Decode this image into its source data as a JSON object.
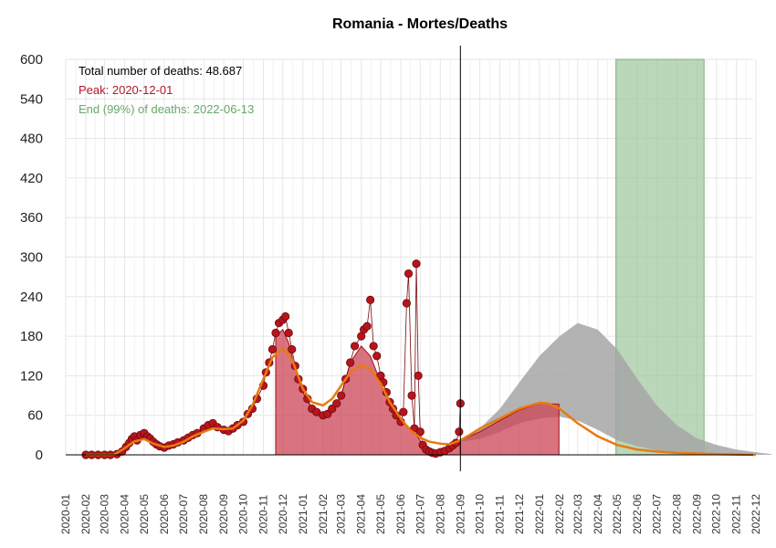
{
  "chart_data": {
    "type": "area",
    "title": "Romania - Mortes/Deaths",
    "xlabel": "",
    "ylabel": "",
    "ylim": [
      0,
      600
    ],
    "yticks": [
      0,
      60,
      120,
      180,
      240,
      300,
      360,
      420,
      480,
      540,
      600
    ],
    "xlim": [
      "2020-01-01",
      "2023-01-01"
    ],
    "xticks": [
      "2020-01",
      "2020-02",
      "2020-03",
      "2020-04",
      "2020-05",
      "2020-06",
      "2020-07",
      "2020-08",
      "2020-09",
      "2020-10",
      "2020-11",
      "2020-12",
      "2021-01",
      "2021-02",
      "2021-03",
      "2021-04",
      "2021-05",
      "2021-06",
      "2021-07",
      "2021-08",
      "2021-09",
      "2021-10",
      "2021-11",
      "2021-12",
      "2022-01",
      "2022-02",
      "2022-03",
      "2022-04",
      "2022-05",
      "2022-06",
      "2022-07",
      "2022-08",
      "2022-09",
      "2022-10",
      "2022-11",
      "2022-12"
    ],
    "grid": true,
    "annotations": [
      {
        "text": "Total number of deaths: 48.687",
        "color": "#000000"
      },
      {
        "text": "Peak: 2020-12-01",
        "color": "#b2182b"
      },
      {
        "text": "End (99%) of deaths: 2022-06-13",
        "color": "#6aa86a"
      }
    ],
    "vline_date": "2021-09-01",
    "highlight_band": {
      "start": "2022-04-29",
      "end": "2022-09-12",
      "color": "#9cc69b"
    },
    "colors": {
      "observed": "#cc4455",
      "points": "#b8141c",
      "fit": "#e87a0f",
      "projection": "#a6a6a6",
      "band": "#8fbf8e"
    },
    "observed_daily": [
      [
        "2020-02-01",
        0
      ],
      [
        "2020-03-15",
        0
      ],
      [
        "2020-04-01",
        15
      ],
      [
        "2020-04-15",
        25
      ],
      [
        "2020-05-01",
        30
      ],
      [
        "2020-05-15",
        22
      ],
      [
        "2020-06-01",
        15
      ],
      [
        "2020-06-15",
        12
      ],
      [
        "2020-07-01",
        20
      ],
      [
        "2020-07-15",
        30
      ],
      [
        "2020-08-01",
        38
      ],
      [
        "2020-08-15",
        45
      ],
      [
        "2020-09-01",
        42
      ],
      [
        "2020-09-15",
        35
      ],
      [
        "2020-10-01",
        48
      ],
      [
        "2020-10-15",
        75
      ],
      [
        "2020-11-01",
        110
      ],
      [
        "2020-11-10",
        145
      ],
      [
        "2020-11-20",
        180
      ],
      [
        "2020-12-01",
        190
      ],
      [
        "2020-12-10",
        170
      ],
      [
        "2020-12-20",
        130
      ],
      [
        "2021-01-01",
        95
      ],
      [
        "2021-01-15",
        70
      ],
      [
        "2021-02-01",
        60
      ],
      [
        "2021-02-15",
        70
      ],
      [
        "2021-03-01",
        90
      ],
      [
        "2021-03-15",
        140
      ],
      [
        "2021-04-01",
        165
      ],
      [
        "2021-04-15",
        150
      ],
      [
        "2021-05-01",
        110
      ],
      [
        "2021-05-15",
        80
      ],
      [
        "2021-06-01",
        55
      ],
      [
        "2021-06-15",
        40
      ],
      [
        "2021-06-25",
        30
      ],
      [
        "2021-07-10",
        8
      ],
      [
        "2021-07-25",
        3
      ],
      [
        "2021-08-10",
        8
      ],
      [
        "2021-08-25",
        15
      ],
      [
        "2021-09-01",
        22
      ]
    ],
    "fitted_curve": [
      [
        "2020-02-01",
        0
      ],
      [
        "2020-03-15",
        0
      ],
      [
        "2020-04-01",
        10
      ],
      [
        "2020-04-15",
        20
      ],
      [
        "2020-05-01",
        24
      ],
      [
        "2020-05-15",
        17
      ],
      [
        "2020-06-01",
        12
      ],
      [
        "2020-06-15",
        14
      ],
      [
        "2020-07-01",
        20
      ],
      [
        "2020-07-15",
        28
      ],
      [
        "2020-08-01",
        35
      ],
      [
        "2020-08-15",
        40
      ],
      [
        "2020-09-01",
        39
      ],
      [
        "2020-09-15",
        40
      ],
      [
        "2020-10-01",
        52
      ],
      [
        "2020-10-15",
        75
      ],
      [
        "2020-11-01",
        115
      ],
      [
        "2020-11-15",
        148
      ],
      [
        "2020-12-01",
        162
      ],
      [
        "2020-12-15",
        145
      ],
      [
        "2021-01-01",
        100
      ],
      [
        "2021-01-15",
        80
      ],
      [
        "2021-02-01",
        75
      ],
      [
        "2021-02-15",
        85
      ],
      [
        "2021-03-01",
        105
      ],
      [
        "2021-03-15",
        125
      ],
      [
        "2021-04-01",
        136
      ],
      [
        "2021-04-15",
        130
      ],
      [
        "2021-05-01",
        108
      ],
      [
        "2021-05-15",
        80
      ],
      [
        "2021-06-01",
        55
      ],
      [
        "2021-06-15",
        38
      ],
      [
        "2021-07-01",
        26
      ],
      [
        "2021-07-15",
        20
      ],
      [
        "2021-08-01",
        17
      ],
      [
        "2021-08-15",
        16
      ],
      [
        "2021-09-01",
        22
      ],
      [
        "2021-09-15",
        30
      ],
      [
        "2021-10-01",
        40
      ],
      [
        "2021-11-01",
        55
      ],
      [
        "2021-12-01",
        70
      ],
      [
        "2022-01-01",
        79
      ],
      [
        "2022-01-15",
        78
      ],
      [
        "2022-02-01",
        70
      ],
      [
        "2022-03-01",
        48
      ],
      [
        "2022-04-01",
        28
      ],
      [
        "2022-05-01",
        15
      ],
      [
        "2022-06-01",
        8
      ],
      [
        "2022-07-01",
        5
      ],
      [
        "2022-08-01",
        3
      ],
      [
        "2022-09-01",
        2
      ],
      [
        "2022-10-01",
        1
      ],
      [
        "2022-11-01",
        0.5
      ],
      [
        "2022-12-01",
        0
      ]
    ],
    "projection_band": [
      [
        "2021-09-01",
        20,
        22
      ],
      [
        "2021-10-01",
        24,
        40
      ],
      [
        "2021-11-01",
        35,
        70
      ],
      [
        "2021-12-01",
        48,
        110
      ],
      [
        "2022-01-01",
        55,
        150
      ],
      [
        "2022-02-01",
        58,
        180
      ],
      [
        "2022-03-01",
        52,
        200
      ],
      [
        "2022-04-01",
        38,
        190
      ],
      [
        "2022-05-01",
        22,
        160
      ],
      [
        "2022-06-01",
        13,
        115
      ],
      [
        "2022-07-01",
        7,
        75
      ],
      [
        "2022-08-01",
        4,
        45
      ],
      [
        "2022-09-01",
        2,
        25
      ],
      [
        "2022-10-01",
        1,
        15
      ],
      [
        "2022-11-01",
        0.5,
        8
      ],
      [
        "2022-12-01",
        0,
        4
      ],
      [
        "2022-12-25",
        0,
        1
      ]
    ],
    "projection_observed_fill": [
      [
        "2021-09-01",
        22
      ],
      [
        "2021-10-01",
        35
      ],
      [
        "2021-11-01",
        52
      ],
      [
        "2021-12-01",
        68
      ],
      [
        "2022-01-01",
        78
      ],
      [
        "2022-01-31",
        77
      ]
    ],
    "scatter_points": [
      [
        "2020-02-01",
        0
      ],
      [
        "2020-02-10",
        0
      ],
      [
        "2020-02-20",
        0
      ],
      [
        "2020-03-01",
        0
      ],
      [
        "2020-03-10",
        0
      ],
      [
        "2020-03-20",
        1
      ],
      [
        "2020-03-28",
        5
      ],
      [
        "2020-04-03",
        12
      ],
      [
        "2020-04-08",
        18
      ],
      [
        "2020-04-12",
        24
      ],
      [
        "2020-04-16",
        28
      ],
      [
        "2020-04-20",
        22
      ],
      [
        "2020-04-25",
        30
      ],
      [
        "2020-05-01",
        33
      ],
      [
        "2020-05-06",
        28
      ],
      [
        "2020-05-10",
        25
      ],
      [
        "2020-05-15",
        20
      ],
      [
        "2020-05-20",
        16
      ],
      [
        "2020-05-25",
        13
      ],
      [
        "2020-06-01",
        11
      ],
      [
        "2020-06-08",
        14
      ],
      [
        "2020-06-15",
        16
      ],
      [
        "2020-06-22",
        19
      ],
      [
        "2020-07-01",
        22
      ],
      [
        "2020-07-08",
        26
      ],
      [
        "2020-07-15",
        30
      ],
      [
        "2020-07-22",
        33
      ],
      [
        "2020-08-01",
        40
      ],
      [
        "2020-08-08",
        45
      ],
      [
        "2020-08-15",
        48
      ],
      [
        "2020-08-22",
        42
      ],
      [
        "2020-09-01",
        38
      ],
      [
        "2020-09-08",
        36
      ],
      [
        "2020-09-15",
        40
      ],
      [
        "2020-09-22",
        45
      ],
      [
        "2020-10-01",
        50
      ],
      [
        "2020-10-08",
        62
      ],
      [
        "2020-10-15",
        70
      ],
      [
        "2020-10-22",
        85
      ],
      [
        "2020-11-01",
        105
      ],
      [
        "2020-11-05",
        125
      ],
      [
        "2020-11-10",
        140
      ],
      [
        "2020-11-15",
        160
      ],
      [
        "2020-11-20",
        185
      ],
      [
        "2020-11-25",
        200
      ],
      [
        "2020-12-01",
        205
      ],
      [
        "2020-12-05",
        210
      ],
      [
        "2020-12-10",
        185
      ],
      [
        "2020-12-15",
        160
      ],
      [
        "2020-12-20",
        135
      ],
      [
        "2020-12-25",
        115
      ],
      [
        "2021-01-01",
        100
      ],
      [
        "2021-01-08",
        85
      ],
      [
        "2021-01-15",
        70
      ],
      [
        "2021-01-22",
        65
      ],
      [
        "2021-02-01",
        60
      ],
      [
        "2021-02-08",
        62
      ],
      [
        "2021-02-15",
        70
      ],
      [
        "2021-02-22",
        78
      ],
      [
        "2021-03-01",
        90
      ],
      [
        "2021-03-08",
        115
      ],
      [
        "2021-03-15",
        140
      ],
      [
        "2021-03-22",
        165
      ],
      [
        "2021-04-01",
        180
      ],
      [
        "2021-04-05",
        190
      ],
      [
        "2021-04-10",
        195
      ],
      [
        "2021-04-15",
        235
      ],
      [
        "2021-04-20",
        165
      ],
      [
        "2021-04-25",
        150
      ],
      [
        "2021-05-01",
        120
      ],
      [
        "2021-05-05",
        110
      ],
      [
        "2021-05-10",
        95
      ],
      [
        "2021-05-15",
        80
      ],
      [
        "2021-05-20",
        70
      ],
      [
        "2021-05-25",
        60
      ],
      [
        "2021-06-01",
        50
      ],
      [
        "2021-06-05",
        65
      ],
      [
        "2021-06-10",
        230
      ],
      [
        "2021-06-13",
        275
      ],
      [
        "2021-06-18",
        90
      ],
      [
        "2021-06-22",
        40
      ],
      [
        "2021-06-25",
        290
      ],
      [
        "2021-06-28",
        120
      ],
      [
        "2021-07-01",
        35
      ],
      [
        "2021-07-05",
        15
      ],
      [
        "2021-07-10",
        8
      ],
      [
        "2021-07-15",
        5
      ],
      [
        "2021-07-20",
        3
      ],
      [
        "2021-07-25",
        2
      ],
      [
        "2021-08-01",
        4
      ],
      [
        "2021-08-08",
        6
      ],
      [
        "2021-08-15",
        10
      ],
      [
        "2021-08-20",
        14
      ],
      [
        "2021-08-25",
        18
      ],
      [
        "2021-08-30",
        35
      ],
      [
        "2021-09-01",
        78
      ]
    ]
  }
}
